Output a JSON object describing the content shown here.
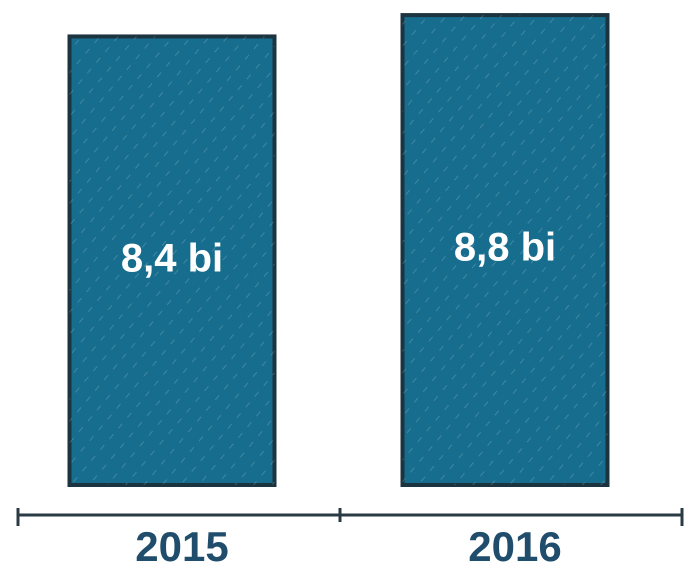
{
  "chart_data": {
    "type": "bar",
    "categories": [
      "2015",
      "2016"
    ],
    "values": [
      8.4,
      8.8
    ],
    "value_labels": [
      "8,4 bi",
      "8,8 bi"
    ],
    "color": "#176d8d"
  }
}
